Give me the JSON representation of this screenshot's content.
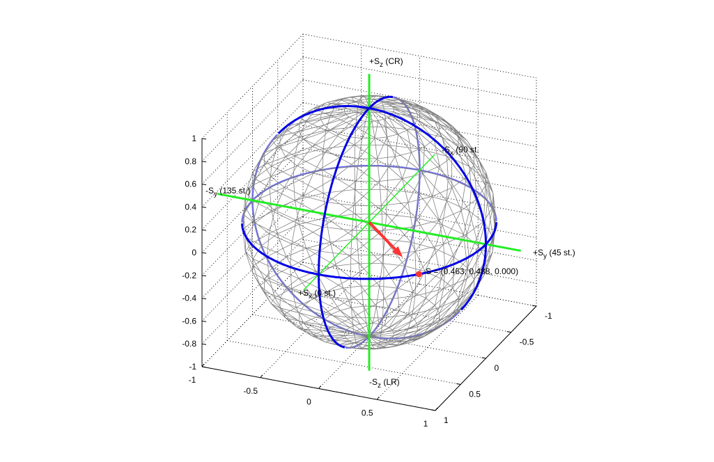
{
  "chart_data": {
    "type": "scatter",
    "title": "",
    "axes": {
      "x": {
        "range": [
          -1,
          1
        ],
        "ticks": [
          "-1",
          "-0.5",
          "0",
          "0.5",
          "1"
        ]
      },
      "y": {
        "range": [
          -1,
          1
        ],
        "ticks": [
          "-1",
          "-0.5",
          "0",
          "0.5",
          "1"
        ]
      },
      "z": {
        "range": [
          -1,
          1
        ],
        "ticks": [
          "1",
          "0.8",
          "0.6",
          "0.4",
          "0.2",
          "0",
          "-0.2",
          "-0.4",
          "-0.6",
          "-0.8",
          "-1"
        ]
      },
      "grid": true,
      "box_grid_style": "dotted"
    },
    "sphere": {
      "radius": 1,
      "style": "wireframe",
      "color": "#808080"
    },
    "great_circles": {
      "color_front": "#0000e6",
      "color_back": "#6f6ff0",
      "planes": [
        "z=0",
        "x=0",
        "y=0"
      ]
    },
    "axis_lines": {
      "color": "#22ee22",
      "labels": {
        "pz": {
          "main": "+S",
          "sub": "z",
          "rest": " (CR)"
        },
        "nz": {
          "main": "-S",
          "sub": "z",
          "rest": " (LR)"
        },
        "py": {
          "main": "+S",
          "sub": "y",
          "rest": " (45 st.)"
        },
        "ny": {
          "main": "-S",
          "sub": "y",
          "rest": " (135 st.)"
        },
        "px": {
          "main": "+S",
          "sub": "x",
          "rest": " (0 st.)"
        },
        "nx": {
          "main": "-S",
          "sub": "x",
          "rest": " (90 st."
        }
      }
    },
    "stokes_vector": {
      "x": 0.463,
      "y": 0.488,
      "z": 0.0,
      "label": "S = (0.463, 0.488, 0.000)",
      "color": "#ff3333"
    }
  }
}
